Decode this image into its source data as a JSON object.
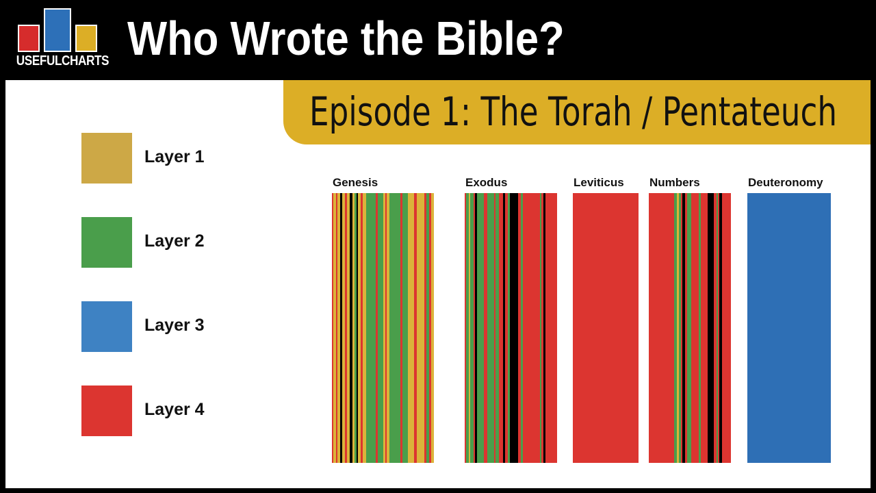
{
  "header": {
    "logo": {
      "text": "USEFULCHARTS",
      "bar_colors": [
        "#d62c2c",
        "#2d70b8",
        "#dcae26"
      ]
    },
    "title": "Who Wrote the Bible?"
  },
  "banner": {
    "title": "Episode 1: The Torah / Pentateuch",
    "color": "#dcae26"
  },
  "legend": [
    {
      "label": "Layer 1",
      "color": "#cda846"
    },
    {
      "label": "Layer 2",
      "color": "#4a9e4b"
    },
    {
      "label": "Layer 3",
      "color": "#3e82c3"
    },
    {
      "label": "Layer 4",
      "color": "#dc3530"
    }
  ],
  "chart_data": {
    "type": "bar",
    "categories": [
      "Genesis",
      "Exodus",
      "Leviticus",
      "Numbers",
      "Deuteronomy"
    ],
    "layer_colors": {
      "Layer 1": "#dbb33a",
      "Layer 2": "#4a9e4b",
      "Layer 3": "#2e6fb5",
      "Layer 4": "#dc3530",
      "black": "#000000"
    },
    "books": [
      {
        "name": "Genesis",
        "segments": [
          [
            "Layer 4",
            2
          ],
          [
            "Layer 1",
            4
          ],
          [
            "Layer 4",
            2
          ],
          [
            "Layer 1",
            4
          ],
          [
            "black",
            3
          ],
          [
            "Layer 1",
            4
          ],
          [
            "Layer 4",
            3
          ],
          [
            "Layer 1",
            4
          ],
          [
            "black",
            4
          ],
          [
            "Layer 1",
            3
          ],
          [
            "Layer 2",
            3
          ],
          [
            "black",
            2
          ],
          [
            "Layer 1",
            4
          ],
          [
            "Layer 4",
            3
          ],
          [
            "Layer 1",
            5
          ],
          [
            "Layer 2",
            14
          ],
          [
            "Layer 4",
            3
          ],
          [
            "Layer 2",
            8
          ],
          [
            "Layer 1",
            3
          ],
          [
            "Layer 4",
            2
          ],
          [
            "Layer 1",
            4
          ],
          [
            "Layer 2",
            16
          ],
          [
            "Layer 4",
            3
          ],
          [
            "Layer 2",
            8
          ],
          [
            "Layer 1",
            9
          ],
          [
            "Layer 4",
            4
          ],
          [
            "Layer 1",
            11
          ],
          [
            "Layer 4",
            3
          ],
          [
            "Layer 2",
            4
          ],
          [
            "Layer 4",
            3
          ],
          [
            "Layer 1",
            4
          ]
        ]
      },
      {
        "name": "Exodus",
        "segments": [
          [
            "Layer 4",
            2
          ],
          [
            "Layer 2",
            4
          ],
          [
            "Layer 1",
            2
          ],
          [
            "Layer 2",
            5
          ],
          [
            "Layer 4",
            2
          ],
          [
            "black",
            3
          ],
          [
            "Layer 2",
            10
          ],
          [
            "Layer 4",
            5
          ],
          [
            "Layer 2",
            10
          ],
          [
            "Layer 4",
            2
          ],
          [
            "Layer 2",
            5
          ],
          [
            "Layer 4",
            6
          ],
          [
            "black",
            3
          ],
          [
            "Layer 4",
            4
          ],
          [
            "Layer 2",
            3
          ],
          [
            "black",
            12
          ],
          [
            "Layer 4",
            4
          ],
          [
            "Layer 2",
            3
          ],
          [
            "Layer 4",
            25
          ],
          [
            "Layer 2",
            2
          ],
          [
            "Layer 4",
            3
          ],
          [
            "black",
            3
          ],
          [
            "Layer 4",
            17
          ]
        ]
      },
      {
        "name": "Leviticus",
        "segments": [
          [
            "Layer 4",
            96
          ]
        ]
      },
      {
        "name": "Numbers",
        "segments": [
          [
            "Layer 4",
            37
          ],
          [
            "Layer 2",
            4
          ],
          [
            "Layer 1",
            3
          ],
          [
            "Layer 2",
            3
          ],
          [
            "Layer 4",
            2
          ],
          [
            "black",
            4
          ],
          [
            "Layer 4",
            3
          ],
          [
            "Layer 2",
            6
          ],
          [
            "Layer 4",
            11
          ],
          [
            "Layer 2",
            3
          ],
          [
            "Layer 4",
            10
          ],
          [
            "black",
            9
          ],
          [
            "Layer 4",
            4
          ],
          [
            "Layer 2",
            2
          ],
          [
            "Layer 4",
            2
          ],
          [
            "black",
            4
          ],
          [
            "Layer 4",
            13
          ]
        ]
      },
      {
        "name": "Deuteronomy",
        "segments": [
          [
            "Layer 3",
            122
          ]
        ]
      }
    ]
  }
}
